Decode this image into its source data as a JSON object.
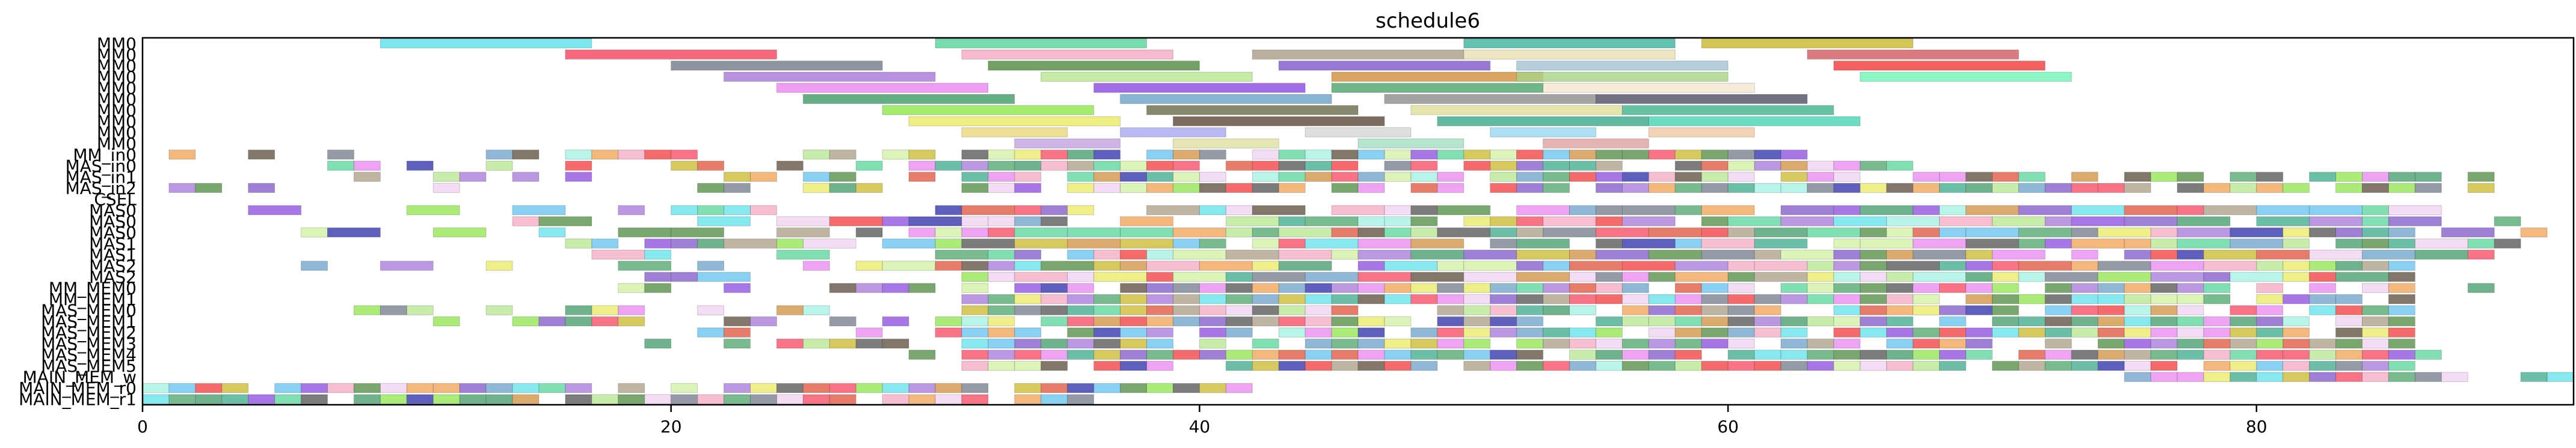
{
  "chart_data": {
    "type": "gantt",
    "title": "schedule6",
    "xlim": [
      0,
      92
    ],
    "x_ticks": [
      0,
      20,
      40,
      60,
      80
    ],
    "rows": [
      "MM0",
      "MM0",
      "MM0",
      "MM0",
      "MM0",
      "MM0",
      "MM0",
      "MM0",
      "MM0",
      "MM0",
      "MM_in0",
      "MAS_in0",
      "MAS_in1",
      "MAS_in2",
      "CSEL",
      "MAS0",
      "MAS0",
      "MAS0",
      "MAS1",
      "MAS1",
      "MAS2",
      "MAS2",
      "MM_MEM0",
      "MM_MEM1",
      "MAS_MEM0",
      "MAS_MEM1",
      "MAS_MEM2",
      "MAS_MEM3",
      "MAS_MEM4",
      "MAS_MEM5",
      "MAIN_MEM_w",
      "MAIN_MEM_r0",
      "MAIN_MEM_r1"
    ],
    "tasks": [
      {
        "row": 0,
        "start": 9,
        "end": 17,
        "color": "#5de1eb"
      },
      {
        "row": 0,
        "start": 30,
        "end": 38,
        "color": "#56d49a"
      },
      {
        "row": 0,
        "start": 50,
        "end": 58,
        "color": "#3db3a0"
      },
      {
        "row": 0,
        "start": 59,
        "end": 67,
        "color": "#c8b82a"
      },
      {
        "row": 1,
        "start": 16,
        "end": 24,
        "color": "#f7445e"
      },
      {
        "row": 1,
        "start": 31,
        "end": 39,
        "color": "#f4a7c2"
      },
      {
        "row": 1,
        "start": 42,
        "end": 50,
        "color": "#a89c84"
      },
      {
        "row": 1,
        "start": 50,
        "end": 58,
        "color": "#e8ddb0"
      },
      {
        "row": 1,
        "start": 63,
        "end": 71,
        "color": "#d25a60"
      },
      {
        "row": 2,
        "start": 20,
        "end": 28,
        "color": "#707a88"
      },
      {
        "row": 2,
        "start": 32,
        "end": 40,
        "color": "#4e8a3e"
      },
      {
        "row": 2,
        "start": 43,
        "end": 51,
        "color": "#7e56c8"
      },
      {
        "row": 2,
        "start": 52,
        "end": 60,
        "color": "#a3c1d4"
      },
      {
        "row": 2,
        "start": 64,
        "end": 72,
        "color": "#f23a3a"
      },
      {
        "row": 3,
        "start": 22,
        "end": 30,
        "color": "#a676d9"
      },
      {
        "row": 3,
        "start": 34,
        "end": 42,
        "color": "#b6e68e"
      },
      {
        "row": 3,
        "start": 45,
        "end": 53,
        "color": "#d18e3c"
      },
      {
        "row": 3,
        "start": 52,
        "end": 60,
        "color": "#a8d486"
      },
      {
        "row": 3,
        "start": 65,
        "end": 73,
        "color": "#6ef2b4"
      },
      {
        "row": 4,
        "start": 24,
        "end": 32,
        "color": "#e884f0"
      },
      {
        "row": 4,
        "start": 36,
        "end": 44,
        "color": "#8a4ae0"
      },
      {
        "row": 4,
        "start": 45,
        "end": 53,
        "color": "#4aa46a"
      },
      {
        "row": 4,
        "start": 53,
        "end": 61,
        "color": "#f5e6cf"
      },
      {
        "row": 5,
        "start": 25,
        "end": 33,
        "color": "#3e9a68"
      },
      {
        "row": 5,
        "start": 37,
        "end": 45,
        "color": "#6aa0c8"
      },
      {
        "row": 5,
        "start": 47,
        "end": 55,
        "color": "#8c8c8c"
      },
      {
        "row": 5,
        "start": 55,
        "end": 63,
        "color": "#4e4e64"
      },
      {
        "row": 6,
        "start": 28,
        "end": 36,
        "color": "#8ee64a"
      },
      {
        "row": 6,
        "start": 38,
        "end": 46,
        "color": "#6a6a48"
      },
      {
        "row": 6,
        "start": 48,
        "end": 56,
        "color": "#dede9a"
      },
      {
        "row": 6,
        "start": 56,
        "end": 64,
        "color": "#3eb48e"
      },
      {
        "row": 7,
        "start": 29,
        "end": 37,
        "color": "#eaea62"
      },
      {
        "row": 7,
        "start": 39,
        "end": 47,
        "color": "#5a4a3a"
      },
      {
        "row": 7,
        "start": 49,
        "end": 57,
        "color": "#3aa88a"
      },
      {
        "row": 7,
        "start": 57,
        "end": 65,
        "color": "#46d4b0"
      },
      {
        "row": 8,
        "start": 31,
        "end": 35,
        "color": "#e8d87a"
      },
      {
        "row": 8,
        "start": 37,
        "end": 41,
        "color": "#a6a6f0"
      },
      {
        "row": 8,
        "start": 44,
        "end": 48,
        "color": "#d6d6d6"
      },
      {
        "row": 8,
        "start": 51,
        "end": 55,
        "color": "#9ad6f0"
      },
      {
        "row": 8,
        "start": 57,
        "end": 61,
        "color": "#f0c8a0"
      },
      {
        "row": 9,
        "start": 33,
        "end": 37,
        "color": "#c0a0e0"
      },
      {
        "row": 9,
        "start": 39,
        "end": 43,
        "color": "#e0e0a0"
      },
      {
        "row": 9,
        "start": 46,
        "end": 50,
        "color": "#a0e0c0"
      },
      {
        "row": 9,
        "start": 53,
        "end": 57,
        "color": "#e0a0a0"
      }
    ],
    "dense_seed": 6
  }
}
